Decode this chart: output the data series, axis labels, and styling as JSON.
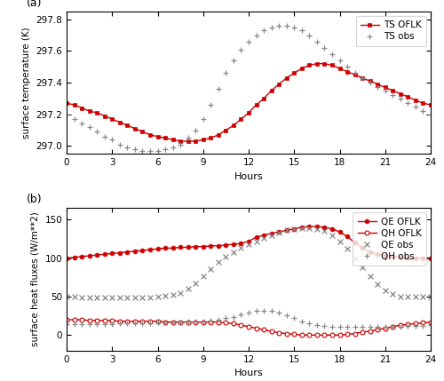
{
  "title_a": "(a)",
  "title_b": "(b)",
  "xlabel": "Hours",
  "ylabel_a": "surface temperature (K)",
  "ylabel_b": "surface heat fluxes (W/m**2)",
  "xlim": [
    0,
    24
  ],
  "xticks": [
    0,
    3,
    6,
    9,
    12,
    15,
    18,
    21,
    24
  ],
  "ylim_a": [
    296.95,
    297.85
  ],
  "yticks_a": [
    297.0,
    297.2,
    297.4,
    297.6,
    297.8
  ],
  "ylim_b": [
    -20,
    165
  ],
  "yticks_b": [
    0,
    50,
    100,
    150
  ],
  "red_color": "#cc0000",
  "obs_color": "#888888",
  "ts_oflk_hours": [
    0.0,
    0.5,
    1.0,
    1.5,
    2.0,
    2.5,
    3.0,
    3.5,
    4.0,
    4.5,
    5.0,
    5.5,
    6.0,
    6.5,
    7.0,
    7.5,
    8.0,
    8.5,
    9.0,
    9.5,
    10.0,
    10.5,
    11.0,
    11.5,
    12.0,
    12.5,
    13.0,
    13.5,
    14.0,
    14.5,
    15.0,
    15.5,
    16.0,
    16.5,
    17.0,
    17.5,
    18.0,
    18.5,
    19.0,
    19.5,
    20.0,
    20.5,
    21.0,
    21.5,
    22.0,
    22.5,
    23.0,
    23.5,
    24.0
  ],
  "ts_oflk_vals": [
    297.27,
    297.26,
    297.24,
    297.22,
    297.21,
    297.19,
    297.17,
    297.15,
    297.13,
    297.11,
    297.09,
    297.07,
    297.06,
    297.05,
    297.04,
    297.03,
    297.03,
    297.03,
    297.04,
    297.05,
    297.07,
    297.1,
    297.13,
    297.17,
    297.21,
    297.26,
    297.3,
    297.35,
    297.39,
    297.43,
    297.46,
    297.49,
    297.51,
    297.52,
    297.52,
    297.51,
    297.49,
    297.47,
    297.45,
    297.43,
    297.41,
    297.39,
    297.37,
    297.35,
    297.33,
    297.31,
    297.29,
    297.27,
    297.26
  ],
  "ts_obs_hours": [
    0.0,
    0.5,
    1.0,
    1.5,
    2.0,
    2.5,
    3.0,
    3.5,
    4.0,
    4.5,
    5.0,
    5.5,
    6.0,
    6.5,
    7.0,
    7.5,
    8.0,
    8.5,
    9.0,
    9.5,
    10.0,
    10.5,
    11.0,
    11.5,
    12.0,
    12.5,
    13.0,
    13.5,
    14.0,
    14.5,
    15.0,
    15.5,
    16.0,
    16.5,
    17.0,
    17.5,
    18.0,
    18.5,
    19.0,
    19.5,
    20.0,
    20.5,
    21.0,
    21.5,
    22.0,
    22.5,
    23.0,
    23.5,
    24.0
  ],
  "ts_obs_vals": [
    297.2,
    297.17,
    297.14,
    297.12,
    297.09,
    297.06,
    297.04,
    297.01,
    296.99,
    296.98,
    296.97,
    296.97,
    296.97,
    296.98,
    296.99,
    297.01,
    297.05,
    297.1,
    297.17,
    297.26,
    297.36,
    297.46,
    297.54,
    297.61,
    297.66,
    297.7,
    297.73,
    297.75,
    297.76,
    297.76,
    297.75,
    297.73,
    297.7,
    297.66,
    297.62,
    297.58,
    297.54,
    297.5,
    297.46,
    297.43,
    297.4,
    297.37,
    297.35,
    297.32,
    297.3,
    297.27,
    297.25,
    297.22,
    297.2
  ],
  "qe_oflk_hours": [
    0.0,
    0.5,
    1.0,
    1.5,
    2.0,
    2.5,
    3.0,
    3.5,
    4.0,
    4.5,
    5.0,
    5.5,
    6.0,
    6.5,
    7.0,
    7.5,
    8.0,
    8.5,
    9.0,
    9.5,
    10.0,
    10.5,
    11.0,
    11.5,
    12.0,
    12.5,
    13.0,
    13.5,
    14.0,
    14.5,
    15.0,
    15.5,
    16.0,
    16.5,
    17.0,
    17.5,
    18.0,
    18.5,
    19.0,
    19.5,
    20.0,
    20.5,
    21.0,
    21.5,
    22.0,
    22.5,
    23.0,
    23.5,
    24.0
  ],
  "qe_oflk_vals": [
    100,
    101,
    102,
    103,
    104,
    105,
    106,
    107,
    108,
    109,
    110,
    111,
    112,
    113,
    113,
    114,
    114,
    115,
    115,
    116,
    116,
    117,
    118,
    119,
    122,
    127,
    130,
    132,
    134,
    136,
    138,
    140,
    141,
    141,
    140,
    138,
    134,
    128,
    120,
    113,
    108,
    105,
    103,
    102,
    101,
    100,
    100,
    100,
    100
  ],
  "qh_oflk_vals": [
    20,
    20,
    20,
    19,
    19,
    19,
    19,
    18,
    18,
    18,
    18,
    18,
    18,
    17,
    17,
    17,
    17,
    17,
    17,
    17,
    17,
    16,
    15,
    13,
    11,
    9,
    7,
    5,
    3,
    2,
    1,
    0,
    0,
    0,
    0,
    0,
    0,
    1,
    2,
    4,
    5,
    7,
    9,
    11,
    13,
    14,
    15,
    16,
    17
  ],
  "qe_obs_vals": [
    50,
    50,
    49,
    49,
    49,
    49,
    49,
    49,
    49,
    49,
    49,
    49,
    50,
    51,
    52,
    55,
    60,
    67,
    76,
    86,
    95,
    102,
    108,
    113,
    118,
    122,
    126,
    130,
    133,
    136,
    138,
    139,
    139,
    138,
    135,
    130,
    122,
    112,
    100,
    88,
    76,
    66,
    58,
    54,
    50,
    50,
    50,
    50,
    50
  ],
  "qh_obs_vals": [
    14,
    14,
    14,
    14,
    14,
    14,
    14,
    15,
    15,
    15,
    15,
    15,
    16,
    16,
    17,
    17,
    18,
    18,
    18,
    19,
    20,
    22,
    24,
    27,
    29,
    31,
    32,
    31,
    29,
    26,
    22,
    18,
    15,
    13,
    12,
    11,
    11,
    11,
    11,
    11,
    11,
    11,
    11,
    11,
    11,
    12,
    12,
    12,
    13
  ]
}
